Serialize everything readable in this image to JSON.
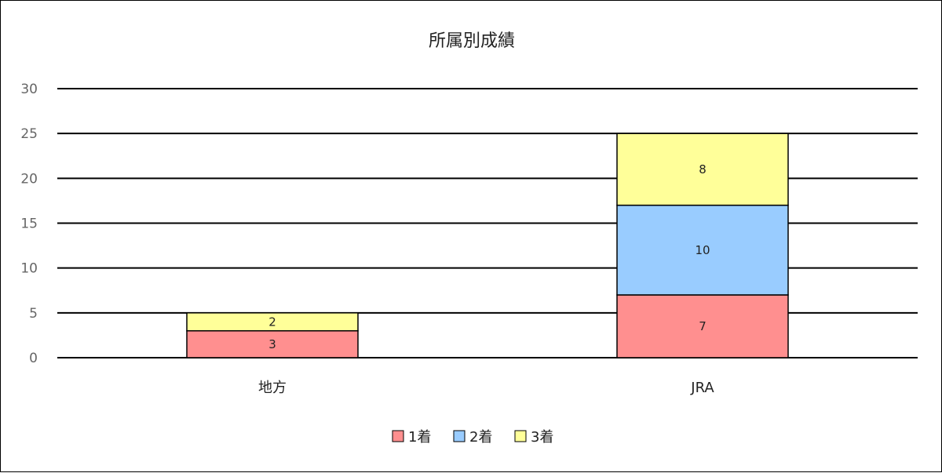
{
  "chart_data": {
    "type": "bar",
    "stacked": true,
    "title": "所属別成績",
    "categories": [
      "地方",
      "JRA"
    ],
    "series": [
      {
        "name": "1着",
        "values": [
          3,
          7
        ],
        "color": "#ff8f8f"
      },
      {
        "name": "2着",
        "values": [
          0,
          10
        ],
        "color": "#99ccff"
      },
      {
        "name": "3着",
        "values": [
          2,
          8
        ],
        "color": "#ffff99"
      }
    ],
    "ylim": [
      0,
      30
    ],
    "yticks": [
      0,
      5,
      10,
      15,
      20,
      25,
      30
    ],
    "grid": true,
    "legend": "bottom",
    "xlabel": "",
    "ylabel": ""
  }
}
